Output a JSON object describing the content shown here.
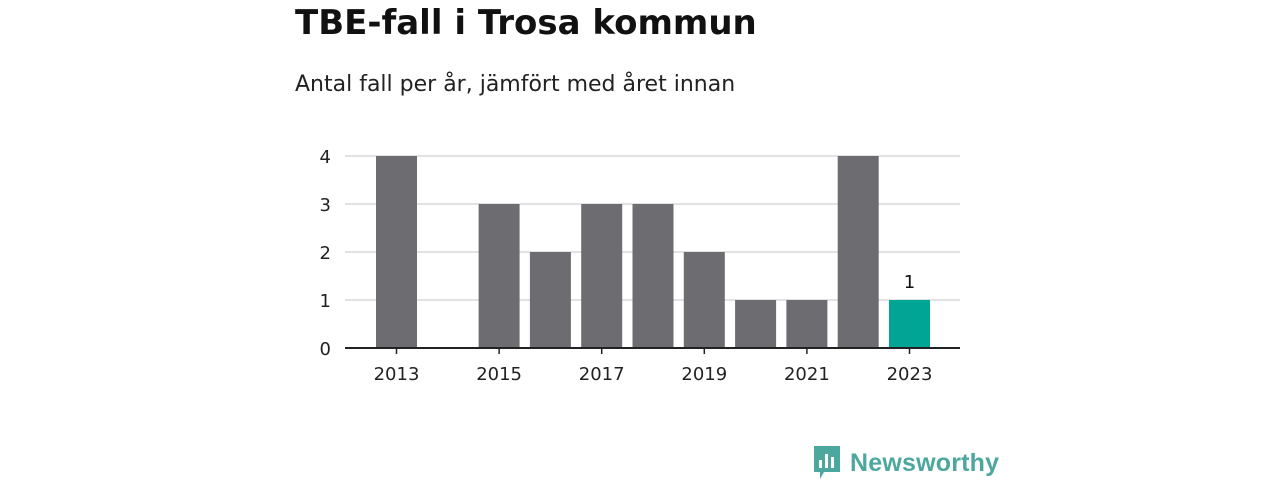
{
  "title": "TBE-fall i Trosa kommun",
  "subtitle": "Antal fall per år, jämfört med året innan",
  "chart_data": {
    "type": "bar",
    "categories": [
      "2013",
      "2014",
      "2015",
      "2016",
      "2017",
      "2018",
      "2019",
      "2020",
      "2021",
      "2022",
      "2023"
    ],
    "values": [
      4,
      0,
      3,
      2,
      3,
      3,
      2,
      1,
      1,
      4,
      1
    ],
    "x_tick_labels": [
      "2013",
      "2015",
      "2017",
      "2019",
      "2021",
      "2023"
    ],
    "y_ticks": [
      0,
      1,
      2,
      3,
      4
    ],
    "ylim": [
      0,
      4
    ],
    "xlabel": "",
    "ylabel": "",
    "grid": true,
    "highlight_category": "2023",
    "highlight_label": "1",
    "colors": {
      "bar": "#6d6c71",
      "highlight": "#00a596",
      "grid": "#d9d9d9",
      "axis": "#222222"
    }
  },
  "branding": {
    "name": "Newsworthy",
    "icon": "newsworthy-logo-icon",
    "color": "#4ca79e"
  }
}
